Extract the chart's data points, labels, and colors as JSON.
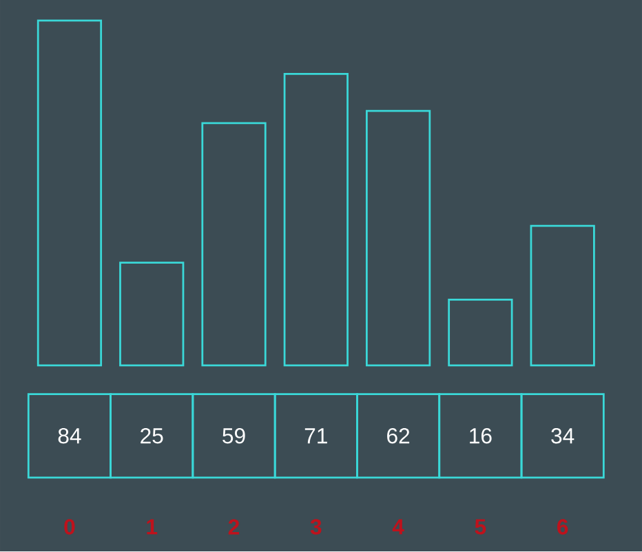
{
  "chart_data": {
    "type": "bar",
    "categories": [
      "0",
      "1",
      "2",
      "3",
      "4",
      "5",
      "6"
    ],
    "values": [
      84,
      25,
      59,
      71,
      62,
      16,
      34
    ],
    "color": "#3ad8d8",
    "ylim": [
      0,
      89
    ],
    "data_labels": true
  }
}
